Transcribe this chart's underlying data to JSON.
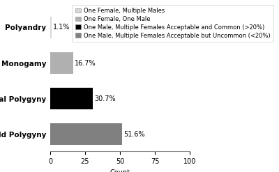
{
  "categories": [
    "Mild Polygyny",
    "General Polygyny",
    "Monogamy",
    "Polyandry"
  ],
  "values": [
    51.6,
    30.7,
    16.7,
    1.1
  ],
  "bar_colors": [
    "#808080",
    "#000000",
    "#b0b0b0",
    "#d8d8d8"
  ],
  "bar_labels": [
    "51.6%",
    "30.7%",
    "16.7%",
    "1.1%"
  ],
  "xlabel": "Count",
  "xlim": [
    0,
    100
  ],
  "xticks": [
    0,
    25,
    50,
    75,
    100
  ],
  "legend_labels": [
    "One Female, Multiple Males",
    "One Female, One Male",
    "One Male, Multiple Females Acceptable and Common (>20%)",
    "One Male, Multiple Females Acceptable but Uncommon (<20%)"
  ],
  "legend_colors": [
    "#d8d8d8",
    "#b0b0b0",
    "#000000",
    "#808080"
  ],
  "background_color": "#ffffff",
  "label_fontsize": 7,
  "tick_fontsize": 7,
  "legend_fontsize": 6.0,
  "yticklabel_fontsize": 7.5
}
